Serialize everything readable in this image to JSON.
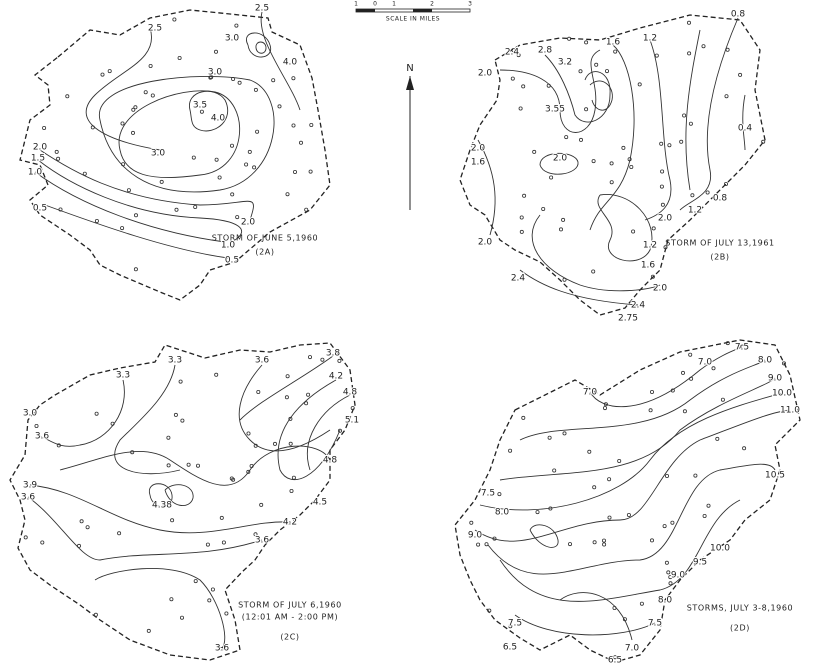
{
  "scale": {
    "ticks": [
      "1",
      "0",
      "1",
      "2",
      "3"
    ],
    "label": "SCALE IN MILES"
  },
  "north": "N",
  "panels": [
    {
      "caption": "STORM OF JUNE 5,1960",
      "id": "(2A)",
      "contour_labels": [
        "2.5",
        "2.5",
        "3.0",
        "4.0",
        "3.0",
        "3.5",
        "4.0",
        "3.0",
        "2.0",
        "1.5",
        "1.0",
        "2.0",
        "0.5",
        "1.0",
        "0.5"
      ]
    },
    {
      "caption": "STORM OF JULY 13,1961",
      "id": "(2B)",
      "contour_labels": [
        "2.4",
        "2.8",
        "3.2",
        "1.6",
        "1.2",
        "0.8",
        "2.0",
        "3.55",
        "2.0",
        "1.6",
        "2.0",
        "0.4",
        "0.8",
        "1.2",
        "2.0",
        "1.2",
        "1.6",
        "2.0",
        "2.4",
        "2.0",
        "2.4",
        "2.75"
      ]
    },
    {
      "caption": "STORM OF JULY 6,1960",
      "subcaption": "(12:01 AM - 2:00 PM)",
      "id": "(2C)",
      "contour_labels": [
        "3.3",
        "3.3",
        "3.6",
        "3.8",
        "4.2",
        "4.8",
        "3.0",
        "5.1",
        "3.6",
        "4.8",
        "3.9",
        "3.6",
        "4.5",
        "4.38",
        "4.2",
        "3.6",
        "3.6"
      ]
    },
    {
      "caption": "STORMS, JULY 3-8,1960",
      "id": "(2D)",
      "contour_labels": [
        "7.5",
        "8.0",
        "7.0",
        "7.0",
        "9.0",
        "10.0",
        "11.0",
        "10.5",
        "7.5",
        "8.0",
        "9.0",
        "10.0",
        "9.5",
        "9.0",
        "8.0",
        "7.5",
        "7.5",
        "6.5",
        "7.0",
        "6.5"
      ]
    }
  ]
}
